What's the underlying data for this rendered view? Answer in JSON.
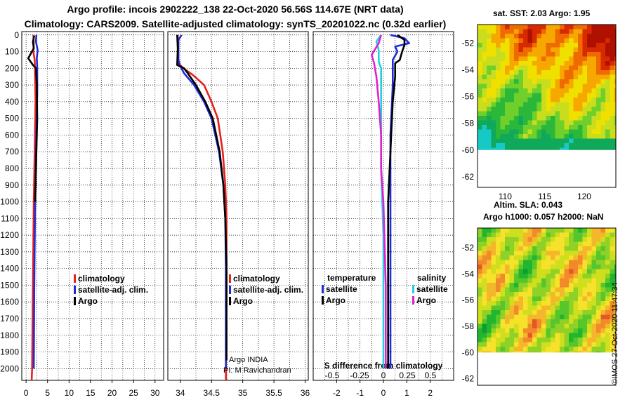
{
  "title_line1": "Argo profile: incois 2902222_138 22-Oct-2020 56.56S 114.67E (NRT data)",
  "title_line2": "Climatology: CARS2009. Satellite-adjusted climatology: synTS_20201022.nc (0.32d earlier)",
  "colors": {
    "climatology": "#e8201b",
    "satellite": "#1f2bd8",
    "argo": "#000000",
    "sat_salinity": "#22d0e0",
    "argo_salinity": "#e020d0"
  },
  "chart_data": [
    {
      "type": "line",
      "name": "temperature-profile",
      "xlim": [
        -1,
        32
      ],
      "ylim": [
        2070,
        -20
      ],
      "xticks": [
        0,
        5,
        10,
        15,
        20,
        25,
        30
      ],
      "yticks": [
        0,
        100,
        200,
        300,
        400,
        500,
        600,
        700,
        800,
        900,
        1000,
        1100,
        1200,
        1300,
        1400,
        1500,
        1600,
        1700,
        1800,
        1900,
        2000
      ],
      "legend_position": "middle-right",
      "series": [
        {
          "name": "climatology",
          "color_key": "climatology",
          "points": [
            [
              1.7,
              0
            ],
            [
              1.8,
              50
            ],
            [
              1.7,
              100
            ],
            [
              2.0,
              150
            ],
            [
              2.1,
              250
            ],
            [
              2.2,
              400
            ],
            [
              2.0,
              700
            ],
            [
              1.8,
              1000
            ],
            [
              1.6,
              1500
            ],
            [
              1.4,
              2000
            ],
            [
              1.3,
              2070
            ]
          ]
        },
        {
          "name": "satellite-adj. clim.",
          "color_key": "satellite",
          "points": [
            [
              2.4,
              0
            ],
            [
              2.3,
              40
            ],
            [
              2.7,
              90
            ],
            [
              2.5,
              140
            ],
            [
              2.6,
              200
            ],
            [
              2.6,
              350
            ],
            [
              2.4,
              600
            ],
            [
              2.1,
              1000
            ],
            [
              1.9,
              1500
            ],
            [
              1.8,
              2000
            ]
          ]
        },
        {
          "name": "Argo",
          "color_key": "argo",
          "points": [
            [
              1.9,
              5
            ],
            [
              1.6,
              40
            ],
            [
              1.8,
              80
            ],
            [
              0.5,
              140
            ],
            [
              1.6,
              180
            ],
            [
              2.3,
              200
            ],
            [
              2.5,
              300
            ],
            [
              2.6,
              500
            ],
            [
              2.4,
              700
            ],
            [
              2.1,
              1000
            ]
          ]
        }
      ],
      "legend": [
        "climatology",
        "satellite-adj. clim.",
        "Argo"
      ]
    },
    {
      "type": "line",
      "name": "salinity-profile",
      "xlim": [
        33.8,
        36.05
      ],
      "ylim": [
        2070,
        -20
      ],
      "xticks": [
        34,
        34.5,
        35,
        35.5,
        36
      ],
      "legend_position": "middle-right",
      "series": [
        {
          "name": "climatology",
          "color_key": "climatology",
          "points": [
            [
              33.96,
              0
            ],
            [
              33.96,
              100
            ],
            [
              33.97,
              170
            ],
            [
              34.05,
              200
            ],
            [
              34.2,
              240
            ],
            [
              34.38,
              300
            ],
            [
              34.5,
              400
            ],
            [
              34.6,
              500
            ],
            [
              34.68,
              700
            ],
            [
              34.72,
              900
            ],
            [
              34.74,
              1100
            ],
            [
              34.74,
              1400
            ],
            [
              34.73,
              2000
            ],
            [
              34.73,
              2070
            ]
          ]
        },
        {
          "name": "satellite-adj. clim.",
          "color_key": "satellite",
          "points": [
            [
              34.02,
              0
            ],
            [
              33.97,
              30
            ],
            [
              33.97,
              150
            ],
            [
              33.99,
              180
            ],
            [
              34.06,
              230
            ],
            [
              34.22,
              300
            ],
            [
              34.38,
              400
            ],
            [
              34.5,
              500
            ],
            [
              34.62,
              700
            ],
            [
              34.69,
              900
            ],
            [
              34.72,
              1100
            ],
            [
              34.73,
              1400
            ],
            [
              34.73,
              2000
            ]
          ]
        },
        {
          "name": "Argo",
          "color_key": "argo",
          "points": [
            [
              33.95,
              0
            ],
            [
              33.96,
              80
            ],
            [
              33.95,
              180
            ],
            [
              34.06,
              200
            ],
            [
              34.12,
              230
            ],
            [
              34.25,
              300
            ],
            [
              34.4,
              400
            ],
            [
              34.52,
              500
            ],
            [
              34.63,
              700
            ],
            [
              34.69,
              900
            ],
            [
              34.72,
              1100
            ],
            [
              34.74,
              1400
            ],
            [
              34.74,
              1800
            ],
            [
              34.74,
              1950
            ]
          ]
        }
      ],
      "legend": [
        "climatology",
        "satellite-adj. clim.",
        "Argo"
      ],
      "annotation_line1": "Argo INDIA",
      "annotation_line2": "PI: M Ravichandran"
    },
    {
      "type": "line",
      "name": "difference-from-climatology",
      "xlim": [
        -3,
        3
      ],
      "ylim": [
        2070,
        -20
      ],
      "xticks_temperature": [
        -2,
        -1,
        0,
        1,
        2
      ],
      "xticks_salinity": [
        "-0.5",
        "-0.25",
        "0",
        "0.25",
        "0.5"
      ],
      "xlabel": "S difference from climatology",
      "legend_position": "middle",
      "series": [
        {
          "name": "satellite (temperature)",
          "color_key": "satellite",
          "points": [
            [
              0.3,
              0
            ],
            [
              0.9,
              20
            ],
            [
              1.1,
              50
            ],
            [
              0.5,
              70
            ],
            [
              0.6,
              100
            ],
            [
              0.4,
              150
            ],
            [
              0.4,
              300
            ],
            [
              0.3,
              600
            ],
            [
              0.3,
              1000
            ],
            [
              0.3,
              1500
            ],
            [
              0.3,
              2000
            ]
          ]
        },
        {
          "name": "Argo (temperature)",
          "color_key": "argo",
          "points": [
            [
              0.6,
              0
            ],
            [
              0.9,
              30
            ],
            [
              0.9,
              60
            ],
            [
              0.8,
              100
            ],
            [
              0.7,
              150
            ],
            [
              0.5,
              170
            ],
            [
              0.5,
              250
            ],
            [
              0.4,
              400
            ],
            [
              0.3,
              700
            ],
            [
              0.2,
              1000
            ],
            [
              0.2,
              1500
            ],
            [
              0.2,
              2000
            ]
          ]
        },
        {
          "name": "satellite (salinity)",
          "color_key": "sat_salinity",
          "points": [
            [
              -0.1,
              0
            ],
            [
              -0.3,
              40
            ],
            [
              -0.2,
              90
            ],
            [
              -0.2,
              160
            ],
            [
              -0.1,
              200
            ],
            [
              -0.1,
              400
            ],
            [
              -0.1,
              800
            ],
            [
              0,
              1200
            ],
            [
              0,
              1600
            ],
            [
              0,
              2000
            ]
          ]
        },
        {
          "name": "Argo (salinity)",
          "color_key": "argo_salinity",
          "points": [
            [
              -0.1,
              0
            ],
            [
              -0.2,
              50
            ],
            [
              -0.5,
              120
            ],
            [
              -0.4,
              170
            ],
            [
              -0.3,
              250
            ],
            [
              -0.2,
              400
            ],
            [
              -0.1,
              600
            ],
            [
              -0.1,
              800
            ],
            [
              0,
              1000
            ],
            [
              0.1,
              1500
            ],
            [
              0.1,
              2000
            ]
          ]
        }
      ],
      "legend_temperature_title": "temperature",
      "legend_salinity_title": "salinity",
      "legend_items": [
        "satellite",
        "Argo"
      ]
    },
    {
      "type": "heatmap",
      "name": "sst-map",
      "title": "sat. SST: 2.03 Argo: 1.95",
      "xlim": [
        106.5,
        124
      ],
      "ylim": [
        -62.8,
        -50.6
      ],
      "xticks": [
        110,
        115,
        120
      ],
      "yticks": [
        -52,
        -54,
        -56,
        -58,
        -60,
        -62
      ],
      "coverage_limit_lat": -60
    },
    {
      "type": "heatmap",
      "name": "sla-map",
      "title_line1": "Altim. SLA: 0.043",
      "title_line2": "Argo h1000: 0.057 h2000: NaN",
      "yticks": [
        -52,
        -54,
        -56,
        -58,
        -60,
        -62
      ],
      "coverage_limit_lat": -60
    }
  ],
  "stamp": "©IMOS 27-Oct-2020 11:47:34"
}
